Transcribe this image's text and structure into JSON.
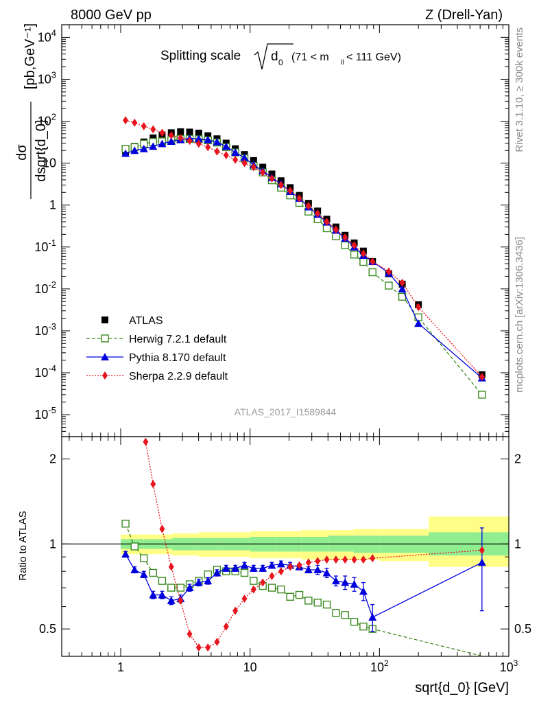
{
  "header": {
    "left": "8000 GeV pp",
    "right": "Z (Drell-Yan)"
  },
  "side_labels": {
    "rivet": "Rivet 3.1.10, ≥ 300k events",
    "mcplots": "mcplots.cern.ch [arXiv:1306.3436]"
  },
  "analysis_id": "ATLAS_2017_I1589844",
  "chart_data": [
    {
      "type": "scatter",
      "panel": "main",
      "title": "Splitting scale √d₀ (71 < m_ll < 111 GeV)",
      "title_parts": {
        "main": "Splitting scale",
        "symbol": "d",
        "symbol_sub": "0",
        "cut_open": "(71 < m",
        "cut_sub": "ll",
        "cut_close": " < 111 GeV)"
      },
      "ylabel_num": "dσ",
      "ylabel_den": "dsqrt{d_0}",
      "ylabel_units": "[pb,GeV⁻¹]",
      "xlabel": "sqrt{d_0} [GeV]",
      "xscale": "log",
      "yscale": "log",
      "xlim": [
        0.35,
        1000
      ],
      "ylim": [
        3e-06,
        20000
      ],
      "y_ticks": [
        "10^-5",
        "10^-4",
        "10^-3",
        "10^-2",
        "10^-1",
        "1",
        "10",
        "10^2",
        "10^3",
        "10^4"
      ],
      "legend_position": "lower-left",
      "series": [
        {
          "name": "ATLAS",
          "marker": "filled-square",
          "color": "#000000",
          "x": [
            1.09,
            1.28,
            1.51,
            1.78,
            2.09,
            2.46,
            2.9,
            3.41,
            4.01,
            4.72,
            5.55,
            6.53,
            7.69,
            9.05,
            10.65,
            12.53,
            14.74,
            17.35,
            20.42,
            24.03,
            28.28,
            33.28,
            39.16,
            46.09,
            54.24,
            63.83,
            75.12,
            88.4,
            118,
            150,
            200,
            620
          ],
          "y": [
            19,
            25,
            32,
            40,
            47,
            53,
            56,
            55,
            52,
            45,
            38,
            30,
            22,
            16,
            11.5,
            8,
            5.5,
            3.8,
            2.6,
            1.7,
            1.1,
            0.72,
            0.46,
            0.3,
            0.19,
            0.125,
            0.08,
            0.045,
            0.023,
            0.013,
            0.0042,
            9e-05
          ]
        },
        {
          "name": "Herwig 7.2.1 default",
          "marker": "open-square",
          "line": "dashed",
          "color": "#3a8a1e",
          "x": [
            1.09,
            1.28,
            1.51,
            1.78,
            2.09,
            2.46,
            2.9,
            3.41,
            4.01,
            4.72,
            5.55,
            6.53,
            7.69,
            9.05,
            10.65,
            12.53,
            14.74,
            17.35,
            20.42,
            24.03,
            28.28,
            33.28,
            39.16,
            46.09,
            54.24,
            63.83,
            75.12,
            88.4,
            118,
            150,
            200,
            620
          ],
          "y": [
            22,
            24,
            29,
            32,
            33,
            35,
            38,
            38,
            37,
            35,
            31,
            24,
            18,
            13,
            8.5,
            6,
            3.9,
            2.6,
            1.7,
            1.13,
            0.7,
            0.46,
            0.28,
            0.18,
            0.11,
            0.066,
            0.044,
            0.025,
            0.012,
            0.0065,
            0.0021,
            3e-05
          ]
        },
        {
          "name": "Pythia 8.170 default",
          "marker": "filled-triangle",
          "line": "solid",
          "color": "#0000dd",
          "x": [
            1.09,
            1.28,
            1.51,
            1.78,
            2.09,
            2.46,
            2.9,
            3.41,
            4.01,
            4.72,
            5.55,
            6.53,
            7.69,
            9.05,
            10.65,
            12.53,
            14.74,
            17.35,
            20.42,
            24.03,
            28.28,
            33.28,
            39.16,
            46.09,
            54.24,
            63.83,
            75.12,
            88.4,
            118,
            150,
            200,
            620
          ],
          "y": [
            17,
            20,
            22,
            25,
            29,
            33,
            36,
            39,
            38,
            36,
            32,
            25,
            18,
            13.5,
            9,
            6.5,
            4.5,
            3.2,
            2.1,
            1.45,
            0.9,
            0.6,
            0.39,
            0.25,
            0.16,
            0.1,
            0.063,
            0.045,
            0.024,
            0.01,
            0.0015,
            7.5e-05
          ]
        },
        {
          "name": "Sherpa 2.2.9 default",
          "marker": "filled-diamond",
          "line": "dotted",
          "color": "#e8141e",
          "x": [
            1.09,
            1.28,
            1.51,
            1.78,
            2.09,
            2.46,
            2.9,
            3.41,
            4.01,
            4.72,
            5.55,
            6.53,
            7.69,
            9.05,
            10.65,
            12.53,
            14.74,
            17.35,
            20.42,
            24.03,
            28.28,
            33.28,
            39.16,
            46.09,
            54.24,
            63.83,
            75.12,
            88.4,
            118,
            150,
            200,
            620
          ],
          "y": [
            105,
            92,
            76,
            64,
            53,
            46,
            40,
            34,
            29,
            24,
            19,
            15.5,
            12,
            10,
            8,
            6,
            4.3,
            3,
            2.2,
            1.45,
            0.95,
            0.63,
            0.4,
            0.26,
            0.17,
            0.11,
            0.07,
            0.045,
            0.026,
            0.014,
            0.0037,
            8e-05
          ]
        }
      ]
    },
    {
      "type": "scatter",
      "panel": "ratio",
      "ylabel": "Ratio to ATLAS",
      "xlabel": "sqrt{d_0} [GeV]",
      "xscale": "log",
      "yscale": "log",
      "xlim": [
        0.35,
        1000
      ],
      "ylim": [
        0.4,
        2.4
      ],
      "y_ticks": [
        0.5,
        1,
        2
      ],
      "x_ticks": [
        "1",
        "10",
        "10^2",
        "10^3"
      ],
      "reference_line": 1,
      "uncertainty_bands": {
        "edges": [
          1.0,
          1.5,
          2.5,
          4,
          6,
          10,
          16,
          25,
          40,
          63,
          100,
          240,
          1000
        ],
        "inner_lo": [
          0.96,
          0.96,
          0.95,
          0.95,
          0.95,
          0.94,
          0.94,
          0.94,
          0.94,
          0.93,
          0.93,
          0.91
        ],
        "inner_hi": [
          1.04,
          1.04,
          1.05,
          1.05,
          1.05,
          1.06,
          1.06,
          1.06,
          1.07,
          1.07,
          1.07,
          1.1
        ],
        "outer_lo": [
          0.92,
          0.92,
          0.91,
          0.9,
          0.9,
          0.89,
          0.89,
          0.88,
          0.88,
          0.88,
          0.87,
          0.83
        ],
        "outer_hi": [
          1.08,
          1.08,
          1.09,
          1.1,
          1.1,
          1.11,
          1.11,
          1.12,
          1.12,
          1.13,
          1.13,
          1.25
        ],
        "inner_color": "#90ee90",
        "outer_color": "#ffff88"
      },
      "series": [
        {
          "name": "Herwig 7.2.1 default",
          "x": [
            1.09,
            1.28,
            1.51,
            1.78,
            2.09,
            2.46,
            2.9,
            3.41,
            4.01,
            4.72,
            5.55,
            6.53,
            7.69,
            9.05,
            10.65,
            12.53,
            14.74,
            17.35,
            20.42,
            24.03,
            28.28,
            33.28,
            39.16,
            46.09,
            54.24,
            63.83,
            75.12,
            88.4,
            1000
          ],
          "y": [
            1.18,
            0.98,
            0.89,
            0.79,
            0.74,
            0.7,
            0.7,
            0.72,
            0.74,
            0.78,
            0.81,
            0.8,
            0.8,
            0.79,
            0.74,
            0.71,
            0.7,
            0.69,
            0.65,
            0.66,
            0.63,
            0.62,
            0.61,
            0.57,
            0.56,
            0.53,
            0.51,
            0.5,
            0.38
          ],
          "yerr": []
        },
        {
          "name": "Pythia 8.170 default",
          "x": [
            1.09,
            1.28,
            1.51,
            1.78,
            2.09,
            2.46,
            2.9,
            3.41,
            4.01,
            4.72,
            5.55,
            6.53,
            7.69,
            9.05,
            10.65,
            12.53,
            14.74,
            17.35,
            20.42,
            24.03,
            28.28,
            33.28,
            39.16,
            46.09,
            54.24,
            63.83,
            75.12,
            88.4,
            620
          ],
          "y": [
            0.92,
            0.81,
            0.78,
            0.66,
            0.66,
            0.63,
            0.64,
            0.7,
            0.73,
            0.74,
            0.79,
            0.82,
            0.82,
            0.84,
            0.82,
            0.82,
            0.84,
            0.85,
            0.84,
            0.83,
            0.81,
            0.81,
            0.79,
            0.74,
            0.73,
            0.72,
            0.68,
            0.55,
            0.86
          ],
          "yerr": [
            0.02,
            0.02,
            0.02,
            0.02,
            0.02,
            0.02,
            0.02,
            0.02,
            0.02,
            0.02,
            0.02,
            0.02,
            0.02,
            0.02,
            0.02,
            0.02,
            0.02,
            0.02,
            0.02,
            0.02,
            0.02,
            0.03,
            0.03,
            0.03,
            0.04,
            0.04,
            0.05,
            0.06,
            0.28
          ]
        },
        {
          "name": "Sherpa 2.2.9 default",
          "x": [
            1.56,
            1.78,
            2.09,
            2.46,
            2.9,
            3.41,
            4.01,
            4.72,
            5.55,
            6.53,
            7.69,
            9.05,
            10.65,
            12.53,
            14.74,
            17.35,
            20.42,
            24.03,
            28.28,
            33.28,
            39.16,
            46.09,
            54.24,
            63.83,
            75.12,
            88.4,
            620
          ],
          "y": [
            2.3,
            1.63,
            1.13,
            0.83,
            0.63,
            0.48,
            0.43,
            0.43,
            0.45,
            0.51,
            0.58,
            0.64,
            0.69,
            0.73,
            0.77,
            0.8,
            0.83,
            0.84,
            0.86,
            0.87,
            0.88,
            0.88,
            0.88,
            0.88,
            0.88,
            0.89,
            0.95
          ],
          "yerr": []
        }
      ]
    }
  ]
}
